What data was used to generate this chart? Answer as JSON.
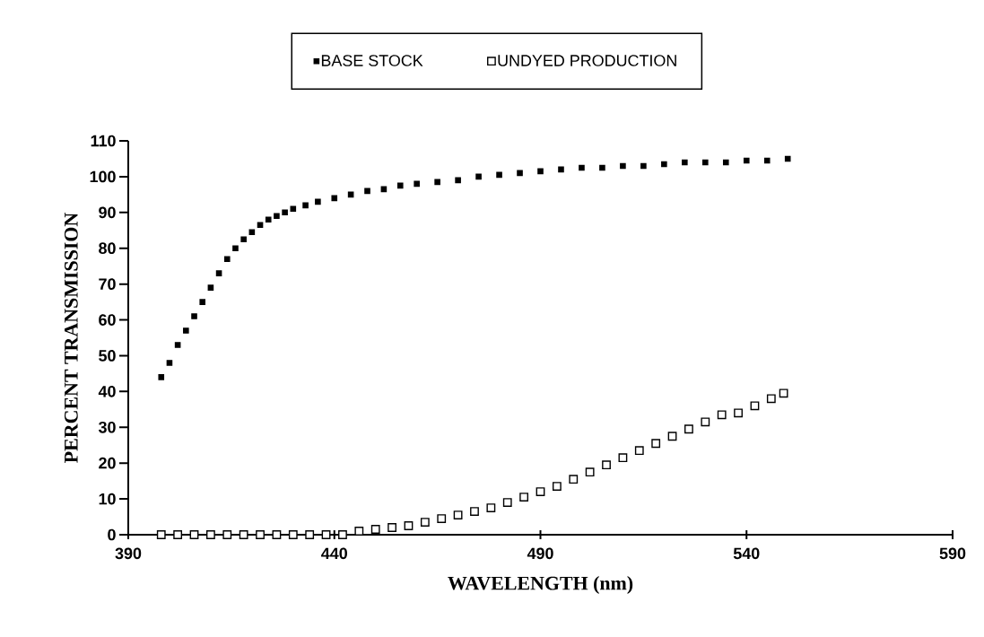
{
  "chart_data": {
    "type": "scatter",
    "xlabel": "WAVELENGTH (nm)",
    "ylabel": "PERCENT TRANSMISSION",
    "xlim": [
      390,
      590
    ],
    "xticks": [
      390,
      440,
      490,
      540,
      590
    ],
    "ylim": [
      0,
      110
    ],
    "yticks": [
      0,
      10,
      20,
      30,
      40,
      50,
      60,
      70,
      80,
      90,
      100,
      110
    ],
    "legend": "top",
    "marker": "square",
    "series": [
      {
        "name": "BASE STOCK",
        "color": "#000000",
        "x": [
          398,
          400,
          402,
          404,
          406,
          408,
          410,
          412,
          414,
          416,
          418,
          420,
          422,
          424,
          426,
          428,
          430,
          433,
          436,
          440,
          444,
          448,
          452,
          456,
          460,
          465,
          470,
          475,
          480,
          485,
          490,
          495,
          500,
          505,
          510,
          515,
          520,
          525,
          530,
          535,
          540,
          545,
          550
        ],
        "values": [
          44,
          48,
          53,
          57,
          61,
          65,
          69,
          73,
          77,
          80,
          82.5,
          84.5,
          86.5,
          88,
          89,
          90,
          91,
          92,
          93,
          94,
          95,
          96,
          96.5,
          97.5,
          98,
          98.5,
          99,
          100,
          100.5,
          101,
          101.5,
          102,
          102.5,
          102.5,
          103,
          103,
          103.5,
          104,
          104,
          104,
          104.5,
          104.5,
          105
        ]
      },
      {
        "name": "UNDYED PRODUCTION",
        "color": "#000000",
        "x": [
          398,
          402,
          406,
          410,
          414,
          418,
          422,
          426,
          430,
          434,
          438,
          442,
          446,
          450,
          454,
          458,
          462,
          466,
          470,
          474,
          478,
          482,
          486,
          490,
          494,
          498,
          502,
          506,
          510,
          514,
          518,
          522,
          526,
          530,
          534,
          538,
          542,
          546,
          549
        ],
        "values": [
          0,
          0,
          0,
          0,
          0,
          0,
          0,
          0,
          0,
          0,
          0,
          0,
          1,
          1.5,
          2,
          2.5,
          3.5,
          4.5,
          5.5,
          6.5,
          7.5,
          9,
          10.5,
          12,
          13.5,
          15.5,
          17.5,
          19.5,
          21.5,
          23.5,
          25.5,
          27.5,
          29.5,
          31.5,
          33.5,
          34,
          36,
          38,
          39.5
        ]
      }
    ]
  }
}
